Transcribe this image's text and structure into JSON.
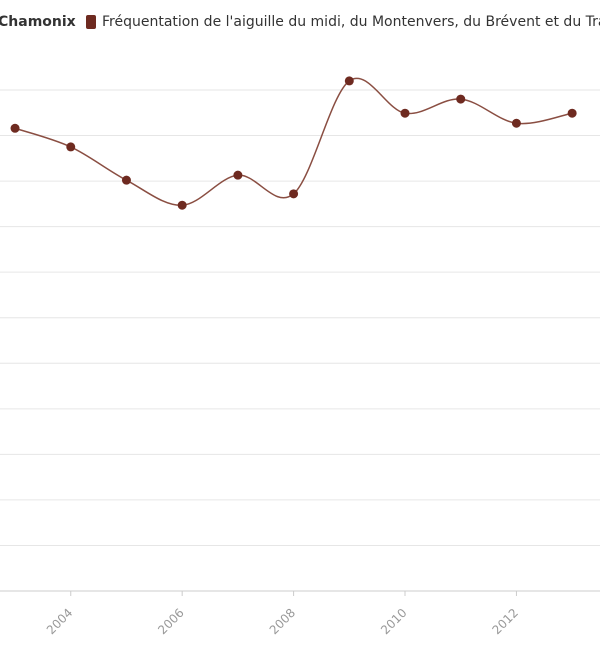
{
  "chart_data": {
    "type": "line",
    "legend_title": "Chamonix",
    "x": [
      2003,
      2004,
      2005,
      2006,
      2007,
      2008,
      2009,
      2010,
      2011,
      2012,
      2013
    ],
    "series": [
      {
        "name": "Fréquentation de l'aiguille du midi, du Montenvers, du Brévent et du Tramw",
        "color": "#6e2a20",
        "values": [
          10.16,
          9.75,
          9.02,
          8.47,
          9.13,
          8.72,
          11.2,
          10.49,
          10.8,
          10.27,
          10.49
        ]
      }
    ],
    "xlim": [
      2002.73,
      2013.5
    ],
    "xticks": [
      2004,
      2006,
      2008,
      2010,
      2012
    ],
    "ylim": [
      0,
      11
    ],
    "yticks": [
      0,
      1,
      2,
      3,
      4,
      5,
      6,
      7,
      8,
      9,
      10,
      11
    ],
    "grid": true
  }
}
